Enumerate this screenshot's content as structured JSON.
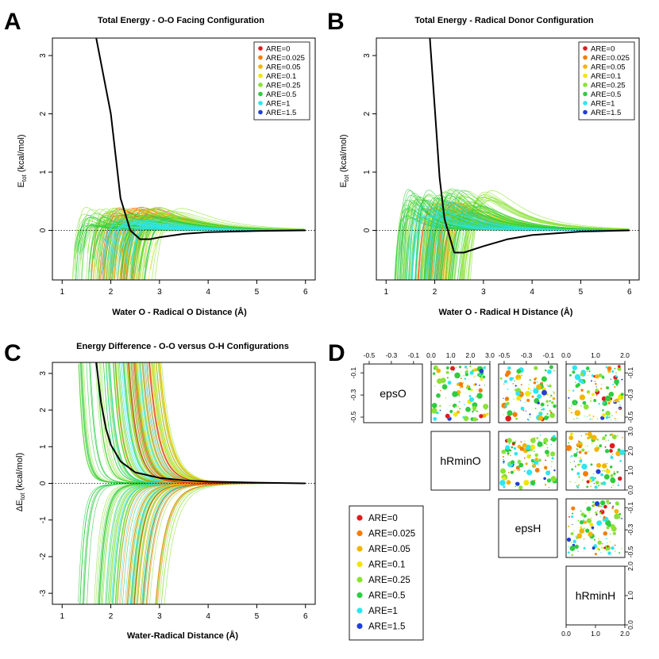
{
  "figure": {
    "panel_letters": [
      "A",
      "B",
      "C",
      "D"
    ]
  },
  "legend_entries": [
    {
      "label": "ARE=0",
      "color": "#e31a1c"
    },
    {
      "label": "ARE=0.025",
      "color": "#f57c00"
    },
    {
      "label": "ARE=0.05",
      "color": "#f4b400"
    },
    {
      "label": "ARE=0.1",
      "color": "#f2e600"
    },
    {
      "label": "ARE=0.25",
      "color": "#8ae234"
    },
    {
      "label": "ARE=0.5",
      "color": "#2ecc40"
    },
    {
      "label": "ARE=1",
      "color": "#2ee6f0"
    },
    {
      "label": "ARE=1.5",
      "color": "#1f3fd6"
    }
  ],
  "chart_data": [
    {
      "panel": "A",
      "type": "line",
      "title": "Total Energy - O-O Facing Configuration",
      "xlabel": "Water O - Radical O Distance (Å)",
      "ylabel_main": "E",
      "ylabel_sub": "tot",
      "ylabel_unit": " (kcal/mol)",
      "xlim": [
        0.8,
        6.2
      ],
      "ylim": [
        -0.85,
        3.3
      ],
      "xticks": [
        "1",
        "2",
        "3",
        "4",
        "5",
        "6"
      ],
      "yticks": [
        "0",
        "1",
        "2",
        "3"
      ],
      "reference_line_y": 0,
      "note": "Many ensemble curves coloured by ARE group; black curve is the reference potential.",
      "reference_curve": {
        "x": [
          1.7,
          2.0,
          2.2,
          2.4,
          2.6,
          2.8,
          3.0,
          3.5,
          4.0,
          5.0,
          6.0
        ],
        "y": [
          3.3,
          2.0,
          0.55,
          0.0,
          -0.15,
          -0.15,
          -0.12,
          -0.06,
          -0.03,
          -0.01,
          0.0
        ]
      },
      "ensemble_groups": [
        {
          "group": "ARE=0",
          "x0_range": [
            2.0,
            3.0
          ],
          "minima": [
            -0.2,
            -0.4
          ],
          "count": 20
        },
        {
          "group": "ARE=0.025",
          "x0_range": [
            1.9,
            3.2
          ],
          "minima": [
            -0.1,
            -0.4
          ],
          "count": 25
        },
        {
          "group": "ARE=0.05",
          "x0_range": [
            2.0,
            3.2
          ],
          "minima": [
            -0.1,
            -0.4
          ],
          "count": 20
        },
        {
          "group": "ARE=0.1",
          "x0_range": [
            2.3,
            3.4
          ],
          "minima": [
            -0.05,
            -0.3
          ],
          "count": 15
        },
        {
          "group": "ARE=0.25",
          "x0_range": [
            1.4,
            3.6
          ],
          "minima": [
            -0.05,
            -0.4
          ],
          "count": 70
        },
        {
          "group": "ARE=0.5",
          "x0_range": [
            1.5,
            3.3
          ],
          "minima": [
            -0.05,
            -0.3
          ],
          "count": 50
        },
        {
          "group": "ARE=1",
          "x0_range": [
            2.1,
            3.0
          ],
          "minima": [
            -0.05,
            -0.2
          ],
          "count": 30
        }
      ]
    },
    {
      "panel": "B",
      "type": "line",
      "title": "Total Energy - Radical Donor Configuration",
      "xlabel": "Water O - Radical H Distance (Å)",
      "ylabel_main": "E",
      "ylabel_sub": "tot",
      "ylabel_unit": " (kcal/mol)",
      "xlim": [
        0.8,
        6.2
      ],
      "ylim": [
        -0.85,
        3.3
      ],
      "xticks": [
        "1",
        "2",
        "3",
        "4",
        "5",
        "6"
      ],
      "yticks": [
        "0",
        "1",
        "2",
        "3"
      ],
      "reference_line_y": 0,
      "reference_curve": {
        "x": [
          1.9,
          2.0,
          2.1,
          2.2,
          2.4,
          2.6,
          3.0,
          3.5,
          4.0,
          5.0,
          6.0
        ],
        "y": [
          3.3,
          2.1,
          0.9,
          0.2,
          -0.38,
          -0.38,
          -0.27,
          -0.15,
          -0.08,
          -0.02,
          0.0
        ]
      },
      "ensemble_groups": [
        {
          "group": "ARE=0",
          "x0_range": [
            1.8,
            2.6
          ],
          "minima": [
            -0.3,
            -0.5
          ],
          "count": 15
        },
        {
          "group": "ARE=0.025",
          "x0_range": [
            1.9,
            2.8
          ],
          "minima": [
            -0.3,
            -0.5
          ],
          "count": 20
        },
        {
          "group": "ARE=0.05",
          "x0_range": [
            1.9,
            2.8
          ],
          "minima": [
            -0.3,
            -0.5
          ],
          "count": 15
        },
        {
          "group": "ARE=0.1",
          "x0_range": [
            1.9,
            2.7
          ],
          "minima": [
            -0.3,
            -0.5
          ],
          "count": 10
        },
        {
          "group": "ARE=0.25",
          "x0_range": [
            1.4,
            3.2
          ],
          "minima": [
            -0.2,
            -0.7
          ],
          "count": 70
        },
        {
          "group": "ARE=0.5",
          "x0_range": [
            1.4,
            3.0
          ],
          "minima": [
            -0.2,
            -0.75
          ],
          "count": 60
        },
        {
          "group": "ARE=1",
          "x0_range": [
            1.7,
            2.5
          ],
          "minima": [
            -0.2,
            -0.5
          ],
          "count": 20
        }
      ]
    },
    {
      "panel": "C",
      "type": "line",
      "title": "Energy Difference - O-O versus O-H Configurations",
      "xlabel": "Water-Radical Distance (Å)",
      "ylabel_main": "ΔE",
      "ylabel_sub": "tot",
      "ylabel_unit": " (kcal/mol)",
      "xlim": [
        0.8,
        6.2
      ],
      "ylim": [
        -3.3,
        3.3
      ],
      "xticks": [
        "1",
        "2",
        "3",
        "4",
        "5",
        "6"
      ],
      "yticks": [
        "-3",
        "-2",
        "-1",
        "0",
        "1",
        "2",
        "3"
      ],
      "reference_line_y": 0,
      "reference_curve": {
        "x": [
          1.7,
          1.8,
          1.9,
          2.0,
          2.2,
          2.5,
          3.0,
          3.5,
          4.0,
          5.0,
          6.0
        ],
        "y": [
          3.3,
          2.2,
          1.5,
          1.05,
          0.6,
          0.3,
          0.15,
          0.08,
          0.05,
          0.02,
          0.0
        ]
      }
    },
    {
      "panel": "D",
      "type": "scatter",
      "title": "",
      "variables": [
        "epsO",
        "hRminO",
        "epsH",
        "hRminH"
      ],
      "ranges": {
        "epsO": [
          -0.55,
          -0.02
        ],
        "hRminO": [
          0.0,
          3.0
        ],
        "epsH": [
          -0.55,
          -0.02
        ],
        "hRminH": [
          0.0,
          2.0
        ]
      },
      "top_axis_ticks": {
        "epsO": [
          "-0.5",
          "-0.3",
          "-0.1"
        ],
        "hRminO": [
          "0.0",
          "1.0",
          "2.0",
          "3.0"
        ],
        "epsH": [
          "-0.5",
          "-0.3",
          "-0.1"
        ],
        "hRminH": [
          "0.0",
          "1.0",
          "2.0"
        ]
      },
      "bottom_axis_ticks": {
        "hRminH": [
          "0.0",
          "1.0",
          "2.0"
        ]
      },
      "right_axis_ticks": {
        "epsO": [
          "-0.1",
          "-0.3",
          "-0.5"
        ],
        "hRminO": [
          "3.0",
          "2.0",
          "1.0",
          "0.0"
        ],
        "epsH": [
          "-0.1",
          "-0.3",
          "-0.5"
        ],
        "hRminH": [
          "2.0",
          "1.0",
          "0.0"
        ]
      },
      "left_axis_ticks": {
        "epsO": [
          "-0.1",
          "-0.3",
          "-0.5"
        ]
      },
      "point_count_per_cell": 130,
      "note": "Pairwise scatter of force-field parameters coloured by ARE group; point size varies."
    }
  ]
}
